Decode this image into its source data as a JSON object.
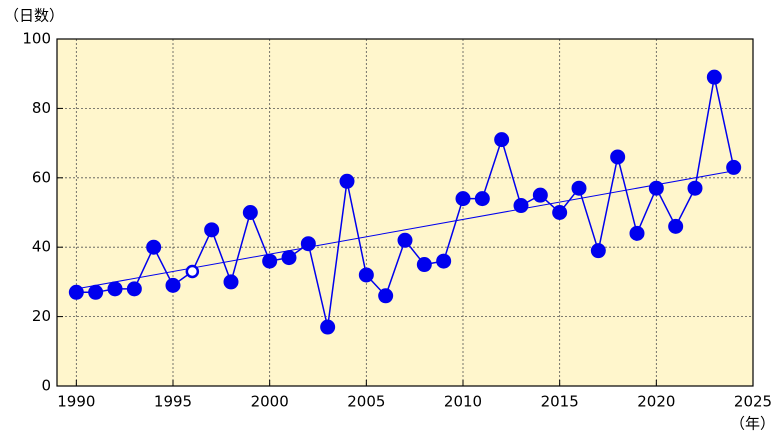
{
  "chart_data": {
    "type": "line",
    "y_label": "（日数）",
    "x_label": "（年）",
    "x": [
      1990,
      1991,
      1992,
      1993,
      1994,
      1995,
      1996,
      1997,
      1998,
      1999,
      2000,
      2001,
      2002,
      2003,
      2004,
      2005,
      2006,
      2007,
      2008,
      2009,
      2010,
      2011,
      2012,
      2013,
      2014,
      2015,
      2016,
      2017,
      2018,
      2019,
      2020,
      2021,
      2022,
      2023,
      2024
    ],
    "series": [
      {
        "color": "#0000ee",
        "values": [
          27,
          27,
          28,
          28,
          40,
          29,
          33,
          45,
          30,
          50,
          36,
          37,
          41,
          17,
          59,
          32,
          26,
          42,
          35,
          36,
          54,
          54,
          71,
          52,
          55,
          50,
          57,
          39,
          66,
          44,
          57,
          46,
          57,
          89,
          63
        ]
      }
    ],
    "hollow_x": [
      1996
    ],
    "trend": {
      "color": "#0000ee",
      "x": [
        1990,
        2024
      ],
      "values": [
        28,
        62
      ]
    },
    "xlim": [
      1989,
      2025
    ],
    "xticks": [
      1990,
      1995,
      2000,
      2005,
      2010,
      2015,
      2020,
      2025
    ],
    "ylim": [
      0,
      100
    ],
    "yticks": [
      0,
      20,
      40,
      60,
      80,
      100
    ],
    "grid": true,
    "background": "#fff6cc"
  }
}
